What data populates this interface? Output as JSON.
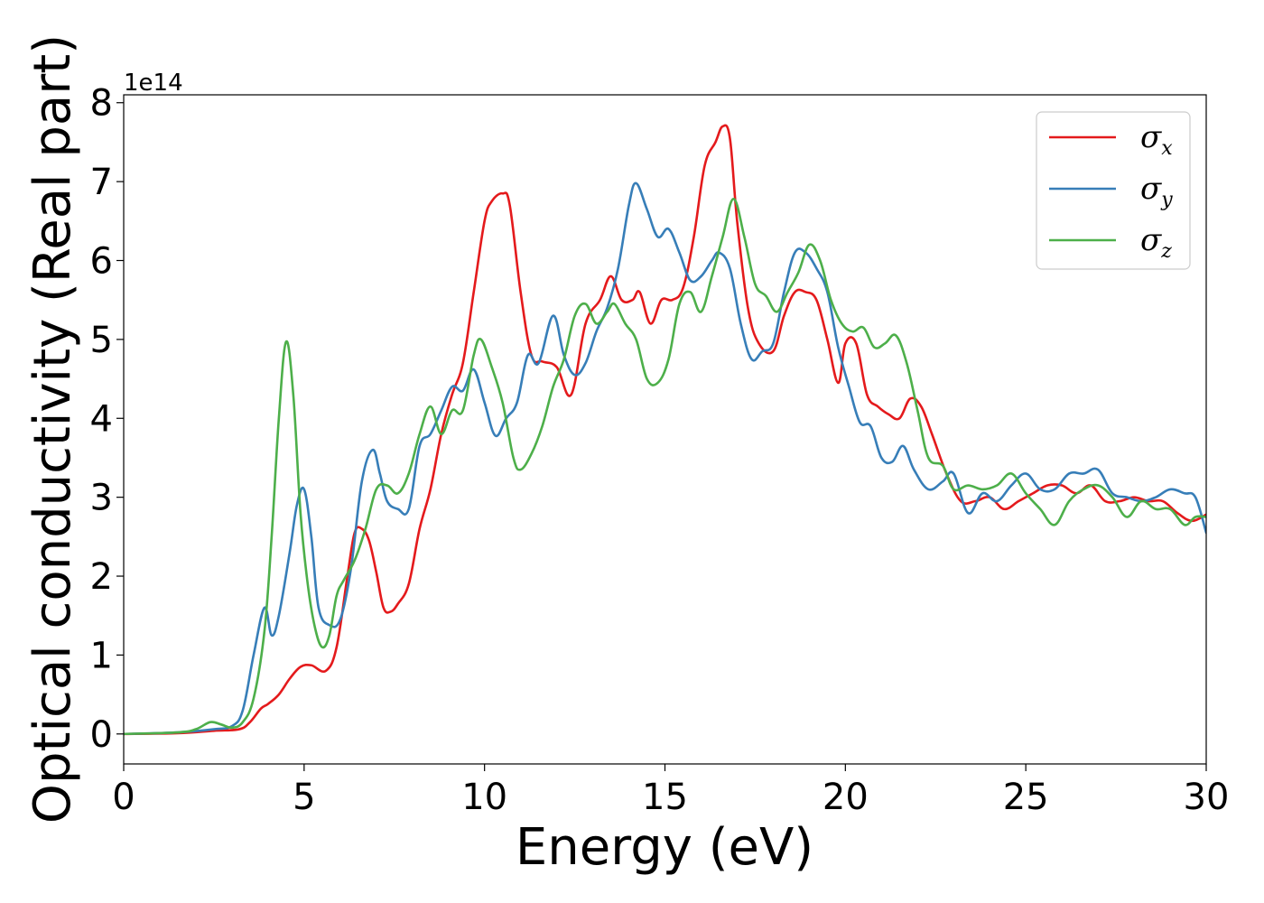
{
  "chart_data": {
    "type": "line",
    "title": "",
    "xlabel": "Energy (eV)",
    "ylabel": "Optical conductivity (Real part)",
    "y_offset_label": "1e14",
    "y_scale": 100000000000000.0,
    "xlim": [
      0,
      30
    ],
    "ylim": [
      -0.38,
      8.1
    ],
    "xticks": [
      0,
      5,
      10,
      15,
      20,
      25,
      30
    ],
    "yticks": [
      0,
      1,
      2,
      3,
      4,
      5,
      6,
      7,
      8
    ],
    "grid": false,
    "legend_position": "top-right",
    "series": [
      {
        "name": "σx",
        "label_base": "σ",
        "label_sub": "x",
        "color": "#e41a1c",
        "x": [
          0,
          1.5,
          2.5,
          3.2,
          3.5,
          3.8,
          4.0,
          4.3,
          4.6,
          4.9,
          5.2,
          5.6,
          5.9,
          6.2,
          6.4,
          6.6,
          6.8,
          7.0,
          7.2,
          7.4,
          7.6,
          7.9,
          8.2,
          8.5,
          8.8,
          9.1,
          9.4,
          9.7,
          10.0,
          10.2,
          10.5,
          10.7,
          11.0,
          11.3,
          11.6,
          12.0,
          12.4,
          12.8,
          13.2,
          13.5,
          13.8,
          14.1,
          14.3,
          14.6,
          14.9,
          15.2,
          15.5,
          15.8,
          16.1,
          16.4,
          16.6,
          16.8,
          17.0,
          17.3,
          17.6,
          18.0,
          18.3,
          18.6,
          18.9,
          19.2,
          19.5,
          19.8,
          20.0,
          20.3,
          20.6,
          20.9,
          21.2,
          21.5,
          21.8,
          22.1,
          22.4,
          22.8,
          23.2,
          23.6,
          24.0,
          24.4,
          24.8,
          25.2,
          25.6,
          26.0,
          26.4,
          26.8,
          27.2,
          27.6,
          28.0,
          28.4,
          28.8,
          29.2,
          29.6,
          30.0
        ],
        "values": [
          0.0,
          0.01,
          0.04,
          0.06,
          0.15,
          0.32,
          0.38,
          0.5,
          0.7,
          0.85,
          0.87,
          0.8,
          1.1,
          2.0,
          2.55,
          2.6,
          2.45,
          2.05,
          1.6,
          1.55,
          1.65,
          1.9,
          2.6,
          3.1,
          3.8,
          4.3,
          4.7,
          5.6,
          6.5,
          6.75,
          6.85,
          6.7,
          5.6,
          4.8,
          4.72,
          4.65,
          4.3,
          5.2,
          5.5,
          5.8,
          5.5,
          5.5,
          5.6,
          5.2,
          5.5,
          5.5,
          5.65,
          6.3,
          7.2,
          7.5,
          7.7,
          7.55,
          6.5,
          5.4,
          4.95,
          4.85,
          5.3,
          5.6,
          5.6,
          5.5,
          5.0,
          4.45,
          4.95,
          4.95,
          4.3,
          4.15,
          4.05,
          4.0,
          4.25,
          4.15,
          3.8,
          3.3,
          2.95,
          2.95,
          3.0,
          2.85,
          2.95,
          3.05,
          3.15,
          3.15,
          3.05,
          3.15,
          2.95,
          2.95,
          3.0,
          2.95,
          2.95,
          2.8,
          2.7,
          2.78
        ]
      },
      {
        "name": "σy",
        "label_base": "σ",
        "label_sub": "y",
        "color": "#377eb8",
        "x": [
          0,
          1.5,
          2.5,
          3.0,
          3.3,
          3.6,
          3.9,
          4.1,
          4.3,
          4.6,
          4.8,
          5.0,
          5.2,
          5.4,
          5.7,
          6.0,
          6.3,
          6.6,
          6.9,
          7.1,
          7.3,
          7.6,
          7.9,
          8.2,
          8.5,
          8.8,
          9.1,
          9.4,
          9.7,
          10.0,
          10.3,
          10.6,
          10.9,
          11.2,
          11.5,
          11.9,
          12.2,
          12.5,
          12.8,
          13.1,
          13.4,
          13.7,
          14.0,
          14.2,
          14.5,
          14.8,
          15.1,
          15.4,
          15.7,
          16.0,
          16.3,
          16.5,
          16.8,
          17.1,
          17.4,
          17.7,
          18.0,
          18.3,
          18.6,
          18.9,
          19.2,
          19.5,
          19.8,
          20.1,
          20.4,
          20.7,
          21.0,
          21.3,
          21.6,
          21.9,
          22.3,
          22.7,
          23.0,
          23.4,
          23.8,
          24.2,
          24.6,
          25.0,
          25.4,
          25.8,
          26.2,
          26.6,
          27.0,
          27.4,
          27.8,
          28.2,
          28.6,
          29.0,
          29.4,
          29.7,
          30.0
        ],
        "values": [
          0.0,
          0.02,
          0.06,
          0.1,
          0.3,
          1.0,
          1.6,
          1.25,
          1.5,
          2.3,
          2.9,
          3.1,
          2.5,
          1.6,
          1.38,
          1.45,
          2.1,
          3.2,
          3.6,
          3.3,
          2.95,
          2.85,
          2.85,
          3.65,
          3.8,
          4.1,
          4.4,
          4.35,
          4.62,
          4.2,
          3.78,
          4.0,
          4.2,
          4.8,
          4.7,
          5.3,
          4.8,
          4.55,
          4.7,
          5.1,
          5.4,
          5.9,
          6.7,
          6.98,
          6.65,
          6.3,
          6.4,
          6.1,
          5.75,
          5.8,
          6.0,
          6.1,
          5.9,
          5.2,
          4.75,
          4.85,
          4.95,
          5.6,
          6.1,
          6.1,
          5.9,
          5.6,
          4.9,
          4.4,
          3.95,
          3.9,
          3.5,
          3.45,
          3.65,
          3.35,
          3.1,
          3.2,
          3.3,
          2.8,
          3.05,
          2.95,
          3.15,
          3.3,
          3.1,
          3.1,
          3.3,
          3.3,
          3.35,
          3.05,
          3.0,
          2.95,
          3.0,
          3.1,
          3.05,
          3.0,
          2.55
        ]
      },
      {
        "name": "σz",
        "label_base": "σ",
        "label_sub": "z",
        "color": "#4daf4a",
        "x": [
          0,
          1.5,
          2.0,
          2.4,
          2.7,
          3.0,
          3.3,
          3.6,
          3.9,
          4.1,
          4.3,
          4.5,
          4.7,
          4.9,
          5.1,
          5.3,
          5.5,
          5.7,
          5.9,
          6.1,
          6.4,
          6.7,
          7.0,
          7.3,
          7.6,
          7.9,
          8.2,
          8.5,
          8.8,
          9.1,
          9.4,
          9.7,
          9.9,
          10.2,
          10.5,
          10.8,
          11.0,
          11.3,
          11.6,
          11.9,
          12.2,
          12.5,
          12.8,
          13.1,
          13.4,
          13.6,
          13.9,
          14.2,
          14.5,
          14.8,
          15.1,
          15.4,
          15.7,
          16.0,
          16.3,
          16.6,
          16.9,
          17.2,
          17.5,
          17.8,
          18.1,
          18.4,
          18.7,
          19.0,
          19.3,
          19.6,
          19.9,
          20.2,
          20.5,
          20.8,
          21.1,
          21.4,
          21.7,
          22.0,
          22.3,
          22.7,
          23.0,
          23.4,
          23.8,
          24.2,
          24.6,
          25.0,
          25.4,
          25.8,
          26.2,
          26.6,
          27.0,
          27.4,
          27.8,
          28.2,
          28.6,
          29.0,
          29.4,
          29.7,
          30.0
        ],
        "values": [
          0.0,
          0.02,
          0.06,
          0.15,
          0.12,
          0.08,
          0.15,
          0.45,
          1.3,
          2.5,
          4.0,
          4.97,
          4.3,
          2.8,
          1.9,
          1.35,
          1.1,
          1.25,
          1.75,
          1.95,
          2.2,
          2.6,
          3.1,
          3.15,
          3.05,
          3.3,
          3.8,
          4.15,
          3.8,
          4.1,
          4.1,
          4.8,
          5.0,
          4.65,
          4.2,
          3.5,
          3.35,
          3.55,
          3.9,
          4.4,
          4.75,
          5.3,
          5.45,
          5.2,
          5.35,
          5.45,
          5.2,
          5.0,
          4.5,
          4.45,
          4.75,
          5.45,
          5.6,
          5.35,
          5.8,
          6.3,
          6.78,
          6.3,
          5.7,
          5.55,
          5.35,
          5.6,
          5.85,
          6.2,
          6.0,
          5.5,
          5.2,
          5.1,
          5.15,
          4.9,
          4.95,
          5.05,
          4.7,
          4.1,
          3.5,
          3.4,
          3.1,
          3.15,
          3.1,
          3.15,
          3.3,
          3.05,
          2.85,
          2.65,
          2.95,
          3.1,
          3.15,
          3.0,
          2.75,
          2.95,
          2.85,
          2.85,
          2.65,
          2.75,
          2.75
        ]
      }
    ]
  }
}
